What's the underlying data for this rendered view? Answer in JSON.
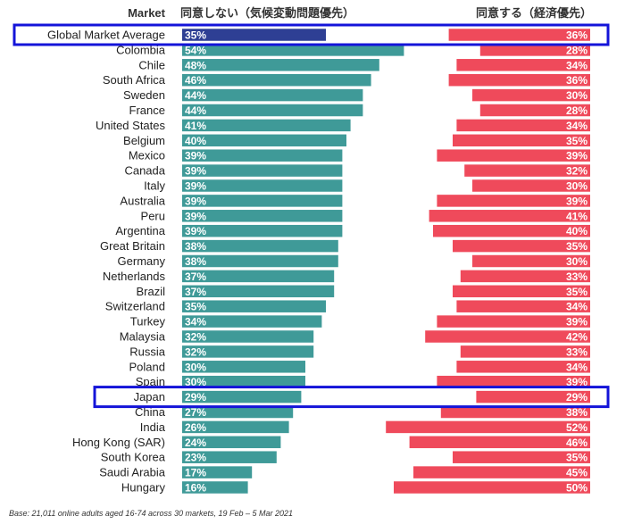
{
  "chart_data": {
    "type": "bar",
    "column_headers": {
      "market": "Market",
      "disagree": "同意しない（気候変動問題優先）",
      "agree": "同意する（経済優先）"
    },
    "categories": [
      "Global Market Average",
      "Colombia",
      "Chile",
      "South Africa",
      "Sweden",
      "France",
      "United States",
      "Belgium",
      "Mexico",
      "Canada",
      "Italy",
      "Australia",
      "Peru",
      "Argentina",
      "Great Britain",
      "Germany",
      "Netherlands",
      "Brazil",
      "Switzerland",
      "Turkey",
      "Malaysia",
      "Russia",
      "Poland",
      "Spain",
      "Japan",
      "China",
      "India",
      "Hong Kong (SAR)",
      "South Korea",
      "Saudi Arabia",
      "Hungary"
    ],
    "series": [
      {
        "name": "同意しない（気候変動問題優先）",
        "values": [
          35,
          54,
          48,
          46,
          44,
          44,
          41,
          40,
          39,
          39,
          39,
          39,
          39,
          39,
          38,
          38,
          37,
          37,
          35,
          34,
          32,
          32,
          30,
          30,
          29,
          27,
          26,
          24,
          23,
          17,
          16
        ]
      },
      {
        "name": "同意する（経済優先）",
        "values": [
          36,
          28,
          34,
          36,
          30,
          28,
          34,
          35,
          39,
          32,
          30,
          39,
          41,
          40,
          35,
          30,
          33,
          35,
          34,
          39,
          42,
          33,
          34,
          39,
          29,
          38,
          52,
          46,
          35,
          45,
          50
        ]
      }
    ],
    "value_suffix": "%",
    "highlighted": [
      "Global Market Average",
      "Japan"
    ],
    "colors": {
      "disagree": "#3f9a98",
      "disagree_average": "#2e3f94",
      "agree": "#ef4a5b",
      "highlight_box": "#1414d9"
    },
    "footnote": "Base: 21,011 online adults aged 16-74 across 30 markets,  19 Feb – 5 Mar 2021"
  }
}
